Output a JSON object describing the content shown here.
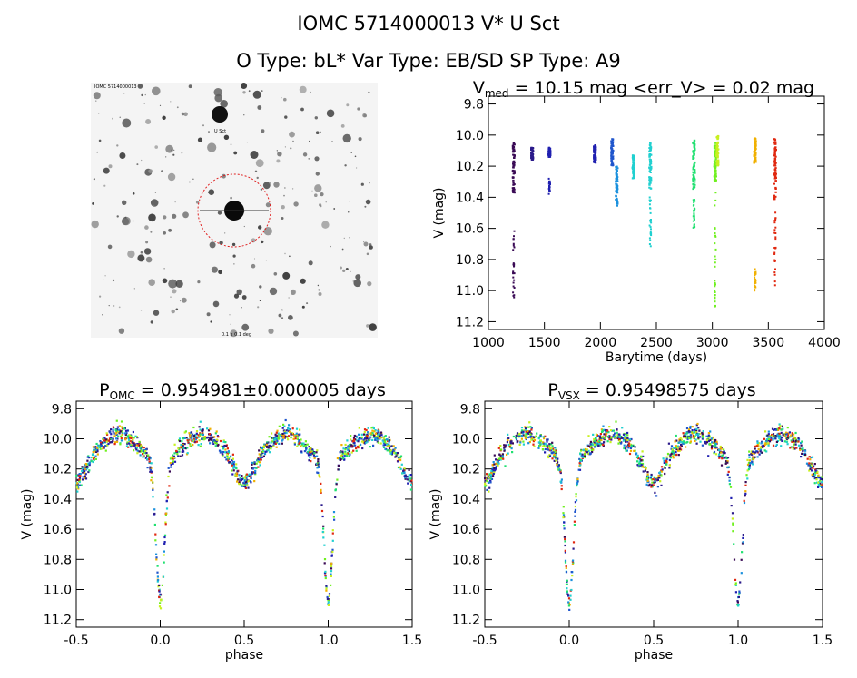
{
  "header": {
    "title_line1": "IOMC 5714000013    V* U Sct",
    "title_line2": "O Type: bL*   Var Type: EB/SD   SP Type: A9"
  },
  "image_panel": {
    "label_top_left": "IOMC 5714000013",
    "label_near_star": "U Sct",
    "label_bottom_center": "0.1 x 0.1 deg"
  },
  "colors": {
    "season_palette": [
      "#3a0a55",
      "#2b1a8a",
      "#2020b0",
      "#1f55cc",
      "#1a90dd",
      "#20d0d0",
      "#20e070",
      "#70f020",
      "#c8f020",
      "#f0b000",
      "#e02810"
    ]
  },
  "chart_data": [
    {
      "type": "scatter",
      "title": "V_med = 10.15 mag <err_V> = 0.02 mag",
      "title_parts": {
        "main": "V",
        "sub": "med",
        "rest": " = 10.15 mag <err_V> = 0.02 mag"
      },
      "xlabel": "Barytime (days)",
      "ylabel": "V (mag)",
      "xlim": [
        1000,
        4000
      ],
      "ylim": [
        11.25,
        9.75
      ],
      "xticks": [
        1000,
        1500,
        2000,
        2500,
        3000,
        3500,
        4000
      ],
      "yticks": [
        9.8,
        10.0,
        10.2,
        10.4,
        10.6,
        10.8,
        11.0,
        11.2
      ],
      "series": [
        {
          "x": 1220,
          "y": [
            10.05,
            10.38
          ],
          "color": "#3a0a55",
          "deep": [
            10.58,
            11.07
          ]
        },
        {
          "x": 1385,
          "y": [
            10.08,
            10.16
          ],
          "color": "#2b1a8a"
        },
        {
          "x": 1540,
          "y": [
            10.08,
            10.14
          ],
          "color": "#2020b0",
          "deep": [
            10.28,
            10.38
          ]
        },
        {
          "x": 1945,
          "y": [
            10.06,
            10.18
          ],
          "color": "#2020b0"
        },
        {
          "x": 2100,
          "y": [
            10.02,
            10.2
          ],
          "color": "#1f55cc"
        },
        {
          "x": 2140,
          "y": [
            10.2,
            10.46
          ],
          "color": "#1a90dd"
        },
        {
          "x": 2290,
          "y": [
            10.13,
            10.28
          ],
          "color": "#20d0d0"
        },
        {
          "x": 2440,
          "y": [
            10.05,
            10.35
          ],
          "color": "#20d0d0",
          "deep": [
            10.4,
            10.72
          ]
        },
        {
          "x": 2830,
          "y": [
            10.03,
            10.35
          ],
          "color": "#20e070",
          "deep": [
            10.4,
            10.6
          ]
        },
        {
          "x": 3020,
          "y": [
            10.05,
            10.3
          ],
          "color": "#70f020",
          "deep": [
            10.35,
            11.12
          ]
        },
        {
          "x": 3040,
          "y": [
            10.0,
            10.2
          ],
          "color": "#c8f020"
        },
        {
          "x": 3375,
          "y": [
            10.02,
            10.18
          ],
          "color": "#f0b000",
          "deep": [
            10.85,
            11.0
          ]
        },
        {
          "x": 3555,
          "y": [
            10.02,
            10.42
          ],
          "color": "#e02810",
          "deep": [
            10.45,
            10.98
          ]
        }
      ]
    },
    {
      "type": "scatter",
      "title": "P_OMC = 0.954981±0.000005 days",
      "title_parts": {
        "main": "P",
        "sub": "OMC",
        "rest": " = 0.954981±0.000005 days"
      },
      "xlabel": "phase",
      "ylabel": "V (mag)",
      "xlim": [
        -0.5,
        1.5
      ],
      "ylim": [
        11.25,
        9.75
      ],
      "xticks": [
        -0.5,
        0.0,
        0.5,
        1.0,
        1.5
      ],
      "yticks": [
        9.8,
        10.0,
        10.2,
        10.4,
        10.6,
        10.8,
        11.0,
        11.2
      ],
      "light_curve": {
        "max_mag": 10.06,
        "primary_min": 11.08,
        "secondary_min": 10.38,
        "period_phase": 1.0
      }
    },
    {
      "type": "scatter",
      "title": "P_VSX = 0.95498575 days",
      "title_parts": {
        "main": "P",
        "sub": "VSX",
        "rest": " = 0.95498575 days"
      },
      "xlabel": "phase",
      "ylabel": "V (mag)",
      "xlim": [
        -0.5,
        1.5
      ],
      "ylim": [
        11.25,
        9.75
      ],
      "xticks": [
        -0.5,
        0.0,
        0.5,
        1.0,
        1.5
      ],
      "yticks": [
        9.8,
        10.0,
        10.2,
        10.4,
        10.6,
        10.8,
        11.0,
        11.2
      ],
      "light_curve": {
        "max_mag": 10.06,
        "primary_min": 11.08,
        "secondary_min": 10.38,
        "period_phase": 1.0
      }
    }
  ]
}
